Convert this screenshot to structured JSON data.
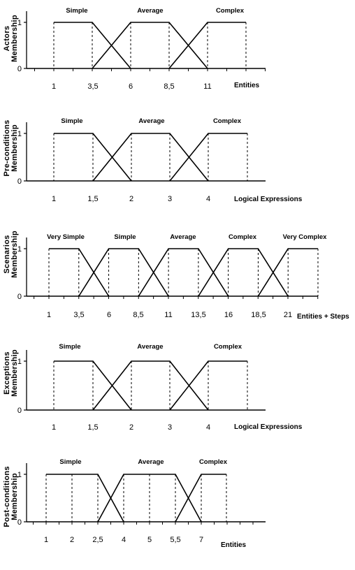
{
  "chart_data": [
    {
      "type": "line",
      "ylabel": "Actors Membership",
      "ylabel_lines": [
        "Actors",
        "Membership"
      ],
      "xlabel": "Entities",
      "ylim": [
        0,
        1
      ],
      "yticks": [
        "0",
        "1"
      ],
      "xticks": [
        "1",
        "3,5",
        "6",
        "8,5",
        "11"
      ],
      "sets": [
        {
          "name": "Simple",
          "points": [
            [
              1,
              1
            ],
            [
              3.5,
              1
            ],
            [
              6,
              0
            ]
          ],
          "dashed_x": [
            1,
            3.5
          ]
        },
        {
          "name": "Average",
          "points": [
            [
              3.5,
              0
            ],
            [
              6,
              1
            ],
            [
              8.5,
              1
            ],
            [
              11,
              0
            ]
          ],
          "dashed_x": [
            6,
            8.5
          ]
        },
        {
          "name": "Complex",
          "points": [
            [
              8.5,
              0
            ],
            [
              11,
              1
            ],
            [
              13.5,
              1
            ]
          ],
          "dashed_x": [
            11,
            13.5
          ]
        }
      ]
    },
    {
      "type": "line",
      "ylabel": "Pre-conditions Membership",
      "ylabel_lines": [
        "Pre-conditions",
        "Membership"
      ],
      "xlabel": "Logical Expressions",
      "ylim": [
        0,
        1
      ],
      "yticks": [
        "0",
        "1"
      ],
      "xticks": [
        "1",
        "1,5",
        "2",
        "3",
        "4"
      ],
      "sets": [
        {
          "name": "Simple",
          "points": [
            [
              1,
              1
            ],
            [
              1.5,
              1
            ],
            [
              2,
              0
            ]
          ],
          "dashed_x": [
            1,
            1.5
          ]
        },
        {
          "name": "Average",
          "points": [
            [
              1.5,
              0
            ],
            [
              2,
              1
            ],
            [
              3,
              1
            ],
            [
              4,
              0
            ]
          ],
          "dashed_x": [
            2,
            3
          ]
        },
        {
          "name": "Complex",
          "points": [
            [
              3,
              0
            ],
            [
              4,
              1
            ],
            [
              5,
              1
            ]
          ],
          "dashed_x": [
            4,
            5
          ]
        }
      ]
    },
    {
      "type": "line",
      "ylabel": "Scenarios Membership",
      "ylabel_lines": [
        "Scenarios",
        "Membership"
      ],
      "xlabel": "Entities + Steps",
      "ylim": [
        0,
        1
      ],
      "yticks": [
        "0",
        "1"
      ],
      "xticks": [
        "1",
        "3,5",
        "6",
        "8,5",
        "11",
        "13,5",
        "16",
        "18,5",
        "21"
      ],
      "sets": [
        {
          "name": "Very Simple",
          "points": [
            [
              1,
              1
            ],
            [
              3.5,
              1
            ],
            [
              6,
              0
            ]
          ],
          "dashed_x": [
            1,
            3.5
          ]
        },
        {
          "name": "Simple",
          "points": [
            [
              3.5,
              0
            ],
            [
              6,
              1
            ],
            [
              8.5,
              1
            ],
            [
              11,
              0
            ]
          ],
          "dashed_x": [
            6,
            8.5
          ]
        },
        {
          "name": "Average",
          "points": [
            [
              8.5,
              0
            ],
            [
              11,
              1
            ],
            [
              13.5,
              1
            ],
            [
              16,
              0
            ]
          ],
          "dashed_x": [
            11,
            13.5
          ]
        },
        {
          "name": "Complex",
          "points": [
            [
              13.5,
              0
            ],
            [
              16,
              1
            ],
            [
              18.5,
              1
            ],
            [
              21,
              0
            ]
          ],
          "dashed_x": [
            16,
            18.5
          ]
        },
        {
          "name": "Very Complex",
          "points": [
            [
              18.5,
              0
            ],
            [
              21,
              1
            ],
            [
              23.5,
              1
            ]
          ],
          "dashed_x": [
            21,
            23.5
          ]
        }
      ]
    },
    {
      "type": "line",
      "ylabel": "Exceptions Membership",
      "ylabel_lines": [
        "Exceptions",
        "Membership"
      ],
      "xlabel": "Logical Expressions",
      "ylim": [
        0,
        1
      ],
      "yticks": [
        "0",
        "1"
      ],
      "xticks": [
        "1",
        "1,5",
        "2",
        "3",
        "4"
      ],
      "sets": [
        {
          "name": "Simple",
          "points": [
            [
              1,
              1
            ],
            [
              1.5,
              1
            ],
            [
              2,
              0
            ]
          ],
          "dashed_x": [
            1,
            1.5
          ]
        },
        {
          "name": "Average",
          "points": [
            [
              1.5,
              0
            ],
            [
              2,
              1
            ],
            [
              3,
              1
            ],
            [
              4,
              0
            ]
          ],
          "dashed_x": [
            2,
            3
          ]
        },
        {
          "name": "Complex",
          "points": [
            [
              3,
              0
            ],
            [
              4,
              1
            ],
            [
              5,
              1
            ]
          ],
          "dashed_x": [
            4,
            5
          ]
        }
      ]
    },
    {
      "type": "line",
      "ylabel": "Post-conditions Membership",
      "ylabel_lines": [
        "Post-conditions",
        "Membership"
      ],
      "xlabel": "Entities",
      "ylim": [
        0,
        1
      ],
      "yticks": [
        "0",
        "1"
      ],
      "xticks": [
        "1",
        "2",
        "2,5",
        "4",
        "5",
        "5,5",
        "7"
      ],
      "sets": [
        {
          "name": "Simple",
          "points": [
            [
              1,
              1
            ],
            [
              2.5,
              1
            ],
            [
              4,
              0
            ]
          ],
          "dashed_x": [
            1,
            2,
            2.5
          ]
        },
        {
          "name": "Average",
          "points": [
            [
              2.5,
              0
            ],
            [
              4,
              1
            ],
            [
              5.5,
              1
            ],
            [
              7,
              0
            ]
          ],
          "dashed_x": [
            4,
            5,
            5.5
          ]
        },
        {
          "name": "Complex",
          "points": [
            [
              5.5,
              0
            ],
            [
              7,
              1
            ],
            [
              8,
              1
            ]
          ],
          "dashed_x": [
            7,
            8
          ]
        }
      ]
    }
  ]
}
